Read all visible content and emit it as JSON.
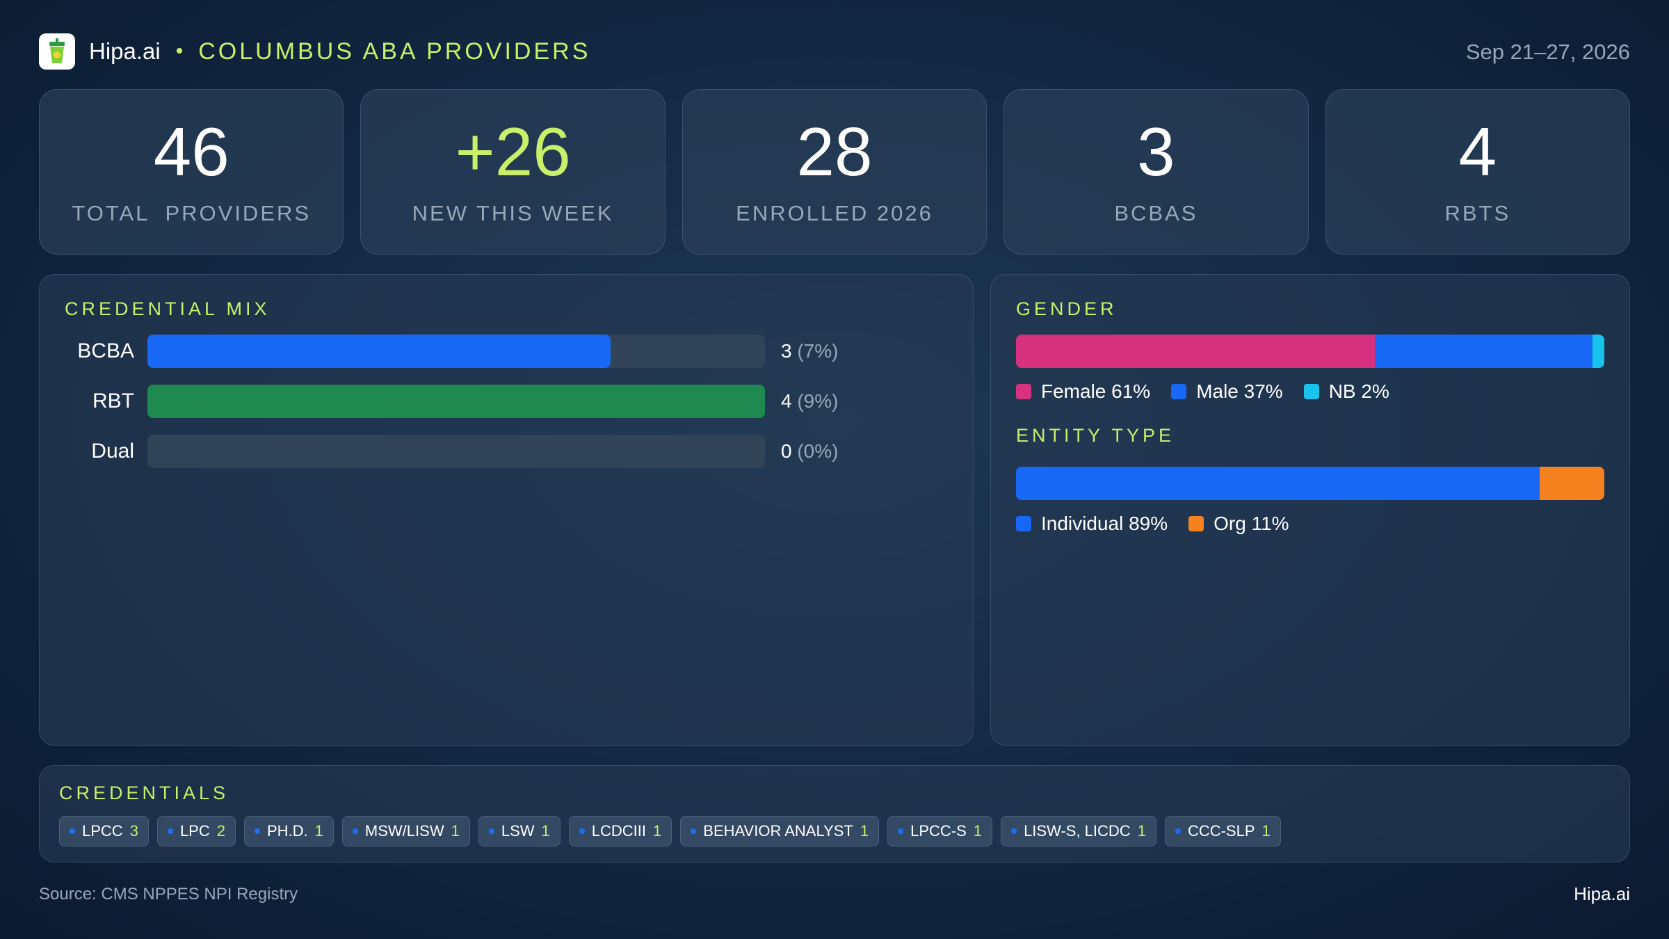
{
  "header": {
    "brand": "Hipa.ai",
    "separator": "•",
    "title": "COLUMBUS ABA PROVIDERS",
    "date_range": "Sep 21–27, 2026",
    "logo_icon": "cup-icon"
  },
  "kpis": [
    {
      "value": "46",
      "label": "TOTAL  PROVIDERS"
    },
    {
      "value": "+26",
      "label": "NEW THIS WEEK"
    },
    {
      "value": "28",
      "label": "ENROLLED 2026"
    },
    {
      "value": "3",
      "label": "BCBAS"
    },
    {
      "value": "4",
      "label": "RBTS"
    }
  ],
  "credential_mix": {
    "title": "CREDENTIAL MIX",
    "rows": [
      {
        "label": "BCBA",
        "count": "3",
        "pct": "(7%)",
        "fill": 0.75,
        "color": "#1768f5"
      },
      {
        "label": "RBT",
        "count": "4",
        "pct": "(9%)",
        "fill": 1.0,
        "color": "#1e8a50"
      },
      {
        "label": "Dual",
        "count": "0",
        "pct": "(0%)",
        "fill": 0,
        "color": "#1768f5"
      }
    ]
  },
  "gender": {
    "title": "GENDER",
    "segments": [
      {
        "label": "Female 61%",
        "share": 61,
        "color": "#d6327e"
      },
      {
        "label": "Male 37%",
        "share": 37,
        "color": "#1768f5"
      },
      {
        "label": "NB 2%",
        "share": 2,
        "color": "#18c4ec"
      }
    ]
  },
  "entity_type": {
    "title": "ENTITY TYPE",
    "segments": [
      {
        "label": "Individual 89%",
        "share": 89,
        "color": "#1768f5"
      },
      {
        "label": "Org 11%",
        "share": 11,
        "color": "#f5821f"
      }
    ]
  },
  "credentials": {
    "title": "CREDENTIALS",
    "chips": [
      {
        "name": "LPCC",
        "count": "3"
      },
      {
        "name": "LPC",
        "count": "2"
      },
      {
        "name": "PH.D.",
        "count": "1"
      },
      {
        "name": "MSW/LISW",
        "count": "1"
      },
      {
        "name": "LSW",
        "count": "1"
      },
      {
        "name": "LCDCIII",
        "count": "1"
      },
      {
        "name": "BEHAVIOR ANALYST",
        "count": "1"
      },
      {
        "name": "LPCC-S",
        "count": "1"
      },
      {
        "name": "LISW-S, LICDC",
        "count": "1"
      },
      {
        "name": "CCC-SLP",
        "count": "1"
      }
    ]
  },
  "footer": {
    "source": "Source: CMS NPPES NPI Registry",
    "brand": "Hipa.ai"
  },
  "colors": {
    "accent": "#c8f06a",
    "muted": "#9aa7b8"
  }
}
